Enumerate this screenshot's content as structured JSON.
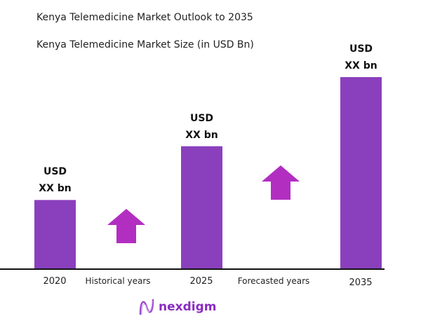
{
  "chart_data": {
    "type": "bar",
    "title": "Kenya Telemedicine Market Outlook to 2035",
    "subtitle": "Kenya Telemedicine Market Size (in USD Bn)",
    "categories": [
      "2020",
      "2025",
      "2035"
    ],
    "relative_values": [
      0.36,
      0.64,
      1.0
    ],
    "data_labels": [
      [
        "USD",
        "XX bn"
      ],
      [
        "USD",
        "XX bn"
      ],
      [
        "USD",
        "XX bn"
      ]
    ],
    "period_labels": [
      "Historical years",
      "Forecasted years"
    ],
    "bar_color": "#8a40bd",
    "arrow_color": "#b22ec1",
    "grid": false
  },
  "logo": {
    "text": "nexdigm"
  }
}
